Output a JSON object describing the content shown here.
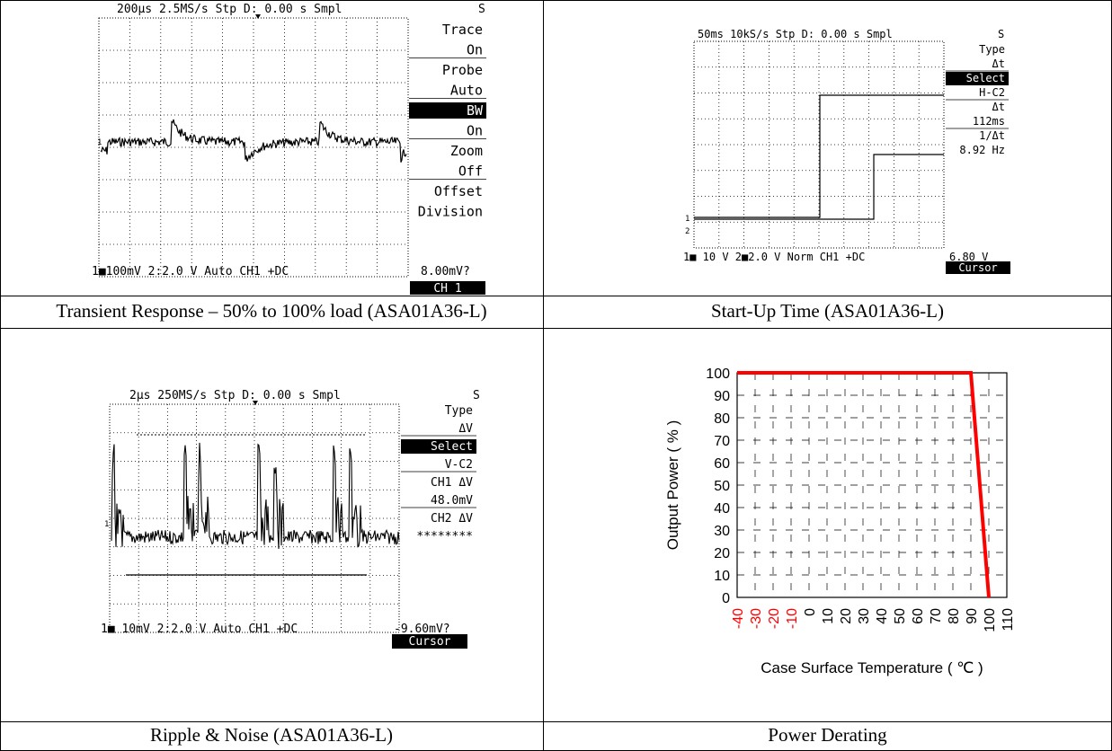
{
  "captions": {
    "transient": "Transient Response – 50% to 100% load (ASA01A36-L)",
    "startup": "Start-Up Time (ASA01A36-L)",
    "ripple": "Ripple & Noise (ASA01A36-L)",
    "derating": "Power Derating"
  },
  "scope1": {
    "header": "200μs   2.5MS/s Stp D: 0.00 s Smpl",
    "header_right": "S",
    "menu": [
      "Trace",
      "On",
      "Probe",
      "Auto",
      "BW",
      "On",
      "Zoom",
      "Off",
      "Offset",
      "Division"
    ],
    "menu_inverted": [
      4
    ],
    "footer_left": "1■100mV  2:2.0 V  Auto CH1 +DC",
    "footer_value": "8.00mV?",
    "footer_button": "CH 1"
  },
  "scope2": {
    "header": "50ms   10kS/s Stp D: 0.00 s Smpl",
    "header_right": "S",
    "menu": [
      "Type",
      "Δt",
      "Select",
      "H-C2",
      "Δt",
      "112ms",
      "1/Δt",
      "8.92 Hz"
    ],
    "menu_inverted": [
      2
    ],
    "footer_left": "1■ 10 V  2■2.0 V  Norm CH1 +DC",
    "footer_value": "6.80 V",
    "footer_button": "Cursor"
  },
  "scope3": {
    "header": "2μs   250MS/s Stp D: 0.00 s Smpl",
    "header_right": "S",
    "menu": [
      "Type",
      "ΔV",
      "Select",
      "V-C2",
      "CH1 ΔV",
      "48.0mV",
      "CH2 ΔV",
      "********"
    ],
    "menu_inverted": [
      2
    ],
    "footer_left": "1■ 10mV  2:2.0 V  Auto CH1 +DC",
    "footer_value": "-9.60mV?",
    "footer_button": "Cursor"
  },
  "chart_data": {
    "type": "line",
    "title": "",
    "xlabel": "Case Surface Temperature ( ℃ )",
    "ylabel": "Output Power ( % )",
    "x_ticks": [
      "-40",
      "-30",
      "-20",
      "-10",
      "0",
      "10",
      "20",
      "30",
      "40",
      "50",
      "60",
      "70",
      "80",
      "90",
      "100",
      "110"
    ],
    "x_tick_colors": [
      "#ff0000",
      "#ff0000",
      "#ff0000",
      "#ff0000",
      "#000000",
      "#000000",
      "#000000",
      "#000000",
      "#000000",
      "#000000",
      "#000000",
      "#000000",
      "#000000",
      "#000000",
      "#000000",
      "#000000"
    ],
    "y_ticks": [
      "0",
      "10",
      "20",
      "30",
      "40",
      "50",
      "60",
      "70",
      "80",
      "90",
      "100"
    ],
    "xlim": [
      -40,
      110
    ],
    "ylim": [
      0,
      100
    ],
    "grid": true,
    "line_color": "#ff0000",
    "series": [
      {
        "x": [
          -40,
          90,
          100
        ],
        "y": [
          100,
          100,
          0
        ]
      }
    ]
  }
}
